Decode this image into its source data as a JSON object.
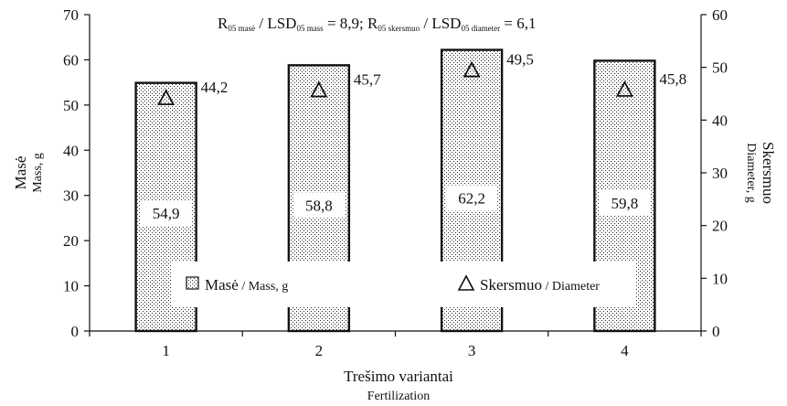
{
  "chart_data": {
    "type": "bar",
    "title_parts": {
      "r05_main": "R",
      "r05_sub": "05 masė",
      "lsd_mass_main": " / LSD",
      "lsd_mass_sub": "05 mass",
      "mass_value": " = 8,9; R",
      "r05_diam_sub": "05 skersmuo",
      "lsd_diam_main": " / LSD",
      "lsd_diam_sub": "05 diameter",
      "diam_value": " = 6,1"
    },
    "categories": [
      "1",
      "2",
      "3",
      "4"
    ],
    "series": [
      {
        "name": "Masė / Mass, g",
        "axis": "left",
        "values": [
          54.9,
          58.8,
          62.2,
          59.8
        ],
        "labels": [
          "54,9",
          "58,8",
          "62,2",
          "59,8"
        ]
      },
      {
        "name": "Skersmuo / Diameter",
        "axis": "right",
        "values": [
          44.2,
          45.7,
          49.5,
          45.8
        ],
        "labels": [
          "44,2",
          "45,7",
          "49,5",
          "45,8"
        ]
      }
    ],
    "y_left": {
      "label_main": "Masė",
      "label_sub": "Mass, g",
      "range": [
        0,
        70
      ],
      "ticks": [
        "0",
        "10",
        "20",
        "30",
        "40",
        "50",
        "60",
        "70"
      ]
    },
    "y_right": {
      "label_main": "Skersmuo",
      "label_sub": "Diameter, g",
      "range": [
        0,
        60
      ],
      "ticks": [
        "0",
        "10",
        "20",
        "30",
        "40",
        "50",
        "60"
      ]
    },
    "x_axis": {
      "label_main": "Trešimo variantai",
      "label_sub": "Fertilization"
    },
    "legend": {
      "placement": "bottom-inside",
      "mass_main": "Masė",
      "mass_sub": " / Mass, g",
      "diam_main": "Skersmuo",
      "diam_sub": " / Diameter"
    },
    "grid": false
  }
}
